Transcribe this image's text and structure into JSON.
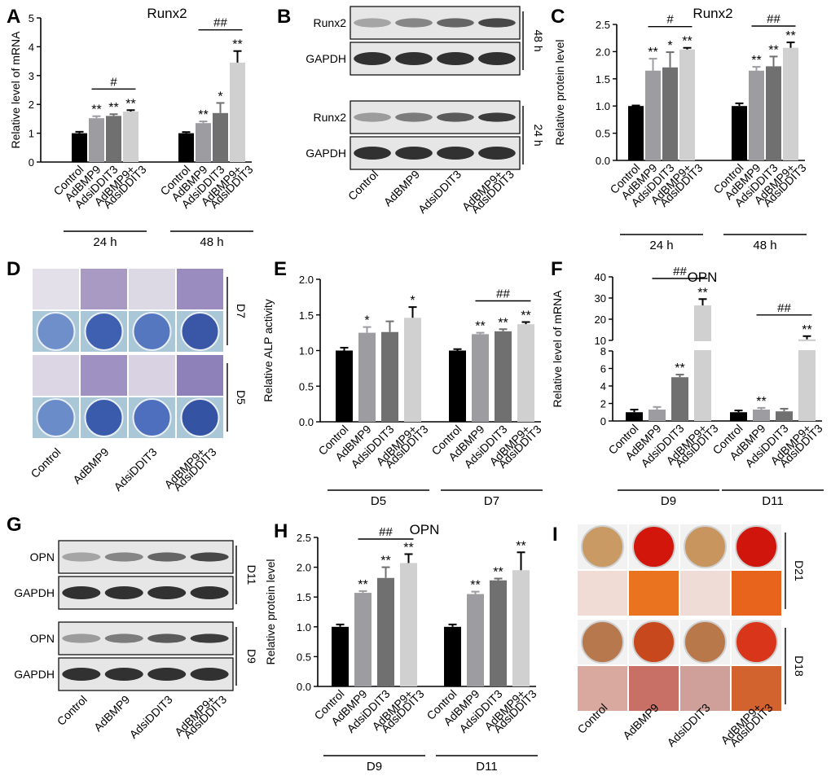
{
  "panel_letters": [
    "A",
    "B",
    "C",
    "D",
    "E",
    "F",
    "G",
    "H",
    "I"
  ],
  "colors": {
    "control": "#000000",
    "adbmp9": "#9c9ca1",
    "adsiddit3": "#707070",
    "combo": "#d0d0d0"
  },
  "group_labels": [
    "Control",
    "AdBMP9",
    "AdsiDDIT3",
    "AdBMP9+AdsiDDIT3"
  ],
  "blot_lane_labels": [
    "Control",
    "AdBMP9",
    "AdsiDDIT3",
    "AdBMP9+ AdsiDDIT3"
  ],
  "blots": {
    "B": {
      "sets": [
        {
          "time": "48 h",
          "rows": [
            "Runx2",
            "GAPDH"
          ]
        },
        {
          "time": "24 h",
          "rows": [
            "Runx2",
            "GAPDH"
          ]
        }
      ]
    },
    "G": {
      "sets": [
        {
          "time": "D11",
          "rows": [
            "OPN",
            "GAPDH"
          ]
        },
        {
          "time": "D9",
          "rows": [
            "OPN",
            "GAPDH"
          ]
        }
      ]
    }
  },
  "images": {
    "D": {
      "labels": [
        "D7",
        "D5"
      ]
    },
    "I": {
      "labels": [
        "D21",
        "D18"
      ]
    }
  },
  "chart_data": [
    {
      "panel": "A",
      "type": "bar",
      "title": "Runx2",
      "ylabel": "Relative level of mRNA",
      "ylim": [
        0,
        5
      ],
      "yticks": [
        0,
        1,
        2,
        3,
        4,
        5
      ],
      "groups": [
        {
          "label": "24 h",
          "values": [
            1.0,
            1.52,
            1.6,
            1.75
          ],
          "errors": [
            0.05,
            0.07,
            0.06,
            0.05
          ],
          "stars": [
            "",
            "**",
            "**",
            "**"
          ]
        },
        {
          "label": "48 h",
          "values": [
            1.0,
            1.35,
            1.7,
            3.45
          ],
          "errors": [
            0.04,
            0.06,
            0.35,
            0.4
          ],
          "stars": [
            "",
            "**",
            "*",
            "**"
          ]
        }
      ],
      "brackets": [
        {
          "group": 0,
          "from": 1,
          "to": 3,
          "text": "#"
        },
        {
          "group": 1,
          "from": 1,
          "to": 3,
          "text": "##"
        }
      ]
    },
    {
      "panel": "C",
      "type": "bar",
      "title": "Runx2",
      "ylabel": "Relative protein level",
      "ylim": [
        0,
        2.5
      ],
      "yticks": [
        "0.0",
        "0.5",
        "1.0",
        "1.5",
        "2.0",
        "2.5"
      ],
      "groups": [
        {
          "label": "24 h",
          "values": [
            1.0,
            1.65,
            1.71,
            2.04
          ],
          "errors": [
            0.01,
            0.22,
            0.28,
            0.03
          ],
          "stars": [
            "",
            "**",
            "*",
            "**"
          ]
        },
        {
          "label": "48 h",
          "values": [
            1.0,
            1.65,
            1.73,
            2.07
          ],
          "errors": [
            0.05,
            0.07,
            0.18,
            0.1
          ],
          "stars": [
            "",
            "**",
            "**",
            "**"
          ]
        }
      ],
      "brackets": [
        {
          "group": 0,
          "from": 1,
          "to": 3,
          "text": "#"
        },
        {
          "group": 1,
          "from": 1,
          "to": 3,
          "text": "##"
        }
      ]
    },
    {
      "panel": "E",
      "type": "bar",
      "title": "",
      "ylabel": "Relative ALP activity",
      "ylim": [
        0,
        2
      ],
      "yticks": [
        "0.0",
        "0.5",
        "1.0",
        "1.5",
        "2.0"
      ],
      "groups": [
        {
          "label": "D5",
          "values": [
            1.0,
            1.25,
            1.26,
            1.46
          ],
          "errors": [
            0.04,
            0.08,
            0.15,
            0.15
          ],
          "stars": [
            "",
            "*",
            "",
            "*"
          ]
        },
        {
          "label": "D7",
          "values": [
            1.0,
            1.23,
            1.27,
            1.37
          ],
          "errors": [
            0.02,
            0.02,
            0.03,
            0.03
          ],
          "stars": [
            "",
            "**",
            "**",
            "**"
          ]
        }
      ],
      "brackets": [
        {
          "group": 1,
          "from": 1,
          "to": 3,
          "text": "##"
        }
      ]
    },
    {
      "panel": "F",
      "type": "bar",
      "title": "OPN",
      "ylabel": "Relative level of mRNA",
      "ylim": [
        0,
        40
      ],
      "axis_break": [
        8,
        10
      ],
      "yticks": [
        0,
        2,
        4,
        6,
        8,
        10,
        20,
        30,
        40
      ],
      "groups": [
        {
          "label": "D9",
          "values": [
            1.0,
            1.3,
            5.0,
            26.5
          ],
          "errors": [
            0.3,
            0.3,
            0.3,
            3.0
          ],
          "stars": [
            "",
            "",
            "**",
            "**"
          ]
        },
        {
          "label": "D11",
          "values": [
            1.0,
            1.3,
            1.1,
            10.5
          ],
          "errors": [
            0.2,
            0.2,
            0.3,
            1.5
          ],
          "stars": [
            "",
            "**",
            "",
            "**"
          ]
        }
      ],
      "brackets": [
        {
          "group": 0,
          "from": 1,
          "to": 3,
          "text": "##"
        },
        {
          "group": 1,
          "from": 1,
          "to": 3,
          "text": "##"
        }
      ]
    },
    {
      "panel": "H",
      "type": "bar",
      "title": "OPN",
      "ylabel": "Relative protein level",
      "ylim": [
        0,
        2.5
      ],
      "yticks": [
        "0.0",
        "0.5",
        "1.0",
        "1.5",
        "2.0",
        "2.5"
      ],
      "groups": [
        {
          "label": "D9",
          "values": [
            1.0,
            1.57,
            1.82,
            2.07
          ],
          "errors": [
            0.04,
            0.03,
            0.18,
            0.15
          ],
          "stars": [
            "",
            "**",
            "**",
            "**"
          ]
        },
        {
          "label": "D11",
          "values": [
            1.0,
            1.55,
            1.78,
            1.95
          ],
          "errors": [
            0.04,
            0.04,
            0.03,
            0.3
          ],
          "stars": [
            "",
            "**",
            "**",
            "**"
          ]
        }
      ],
      "brackets": [
        {
          "group": 0,
          "from": 1,
          "to": 3,
          "text": "##"
        }
      ]
    }
  ]
}
